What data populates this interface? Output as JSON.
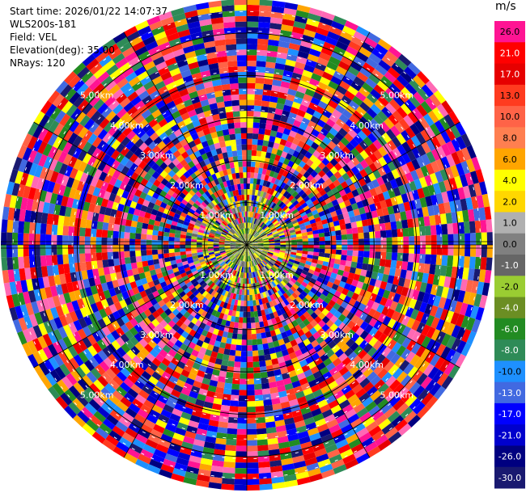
{
  "info": {
    "start_time": "Start time: 2026/01/22 14:07:37",
    "station": "WLS200s-181",
    "field": "Field: VEL",
    "elevation": "Elevation(deg): 35.00",
    "nrays": "NRays: 120"
  },
  "chart_data": {
    "type": "heatmap",
    "projection": "polar (PPI scan)",
    "field": "VEL",
    "elevation_deg": 35.0,
    "n_rays": 120,
    "unit": "m/s",
    "range_rings_km": [
      1.0,
      2.0,
      3.0,
      4.0,
      5.0
    ],
    "range_ring_labels": [
      "1.00km",
      "2.00km",
      "3.00km",
      "4.00km",
      "5.00km"
    ],
    "max_range_km": 5.8,
    "colorbar": {
      "unit_label": "m/s",
      "levels": [
        {
          "label": "26.0",
          "color": "#ff1493"
        },
        {
          "label": "21.0",
          "color": "#ff0000"
        },
        {
          "label": "17.0",
          "color": "#e60000"
        },
        {
          "label": "13.0",
          "color": "#ff3b1f"
        },
        {
          "label": "10.0",
          "color": "#ff6347"
        },
        {
          "label": "8.0",
          "color": "#ff7f50"
        },
        {
          "label": "6.0",
          "color": "#ffa500"
        },
        {
          "label": "4.0",
          "color": "#ffff00"
        },
        {
          "label": "2.0",
          "color": "#ffd700"
        },
        {
          "label": "1.0",
          "color": "#b0b0b0"
        },
        {
          "label": "0.0",
          "color": "#808080"
        },
        {
          "label": "-1.0",
          "color": "#666666"
        },
        {
          "label": "-2.0",
          "color": "#9acd32"
        },
        {
          "label": "-4.0",
          "color": "#6b8e23"
        },
        {
          "label": "-6.0",
          "color": "#228b22"
        },
        {
          "label": "-8.0",
          "color": "#2e8b57"
        },
        {
          "label": "-10.0",
          "color": "#1e90ff"
        },
        {
          "label": "-13.0",
          "color": "#4169e1"
        },
        {
          "label": "-17.0",
          "color": "#0000ff"
        },
        {
          "label": "-21.0",
          "color": "#0000cd"
        },
        {
          "label": "-26.0",
          "color": "#000080"
        },
        {
          "label": "-30.0",
          "color": "#191970"
        }
      ]
    },
    "inner_palette": [
      "#808080",
      "#666666",
      "#9acd32",
      "#6b8e23",
      "#228b22",
      "#ffff00",
      "#ffd700",
      "#b0b0b0"
    ],
    "outer_palette": [
      "#ff1493",
      "#ff0000",
      "#e60000",
      "#ff69b4",
      "#0000ff",
      "#0000cd",
      "#000080",
      "#191970",
      "#4169e1",
      "#1e90ff",
      "#2e8b57",
      "#228b22",
      "#ffa500",
      "#ffff00",
      "#ff6347",
      "#ff3b1f"
    ]
  }
}
